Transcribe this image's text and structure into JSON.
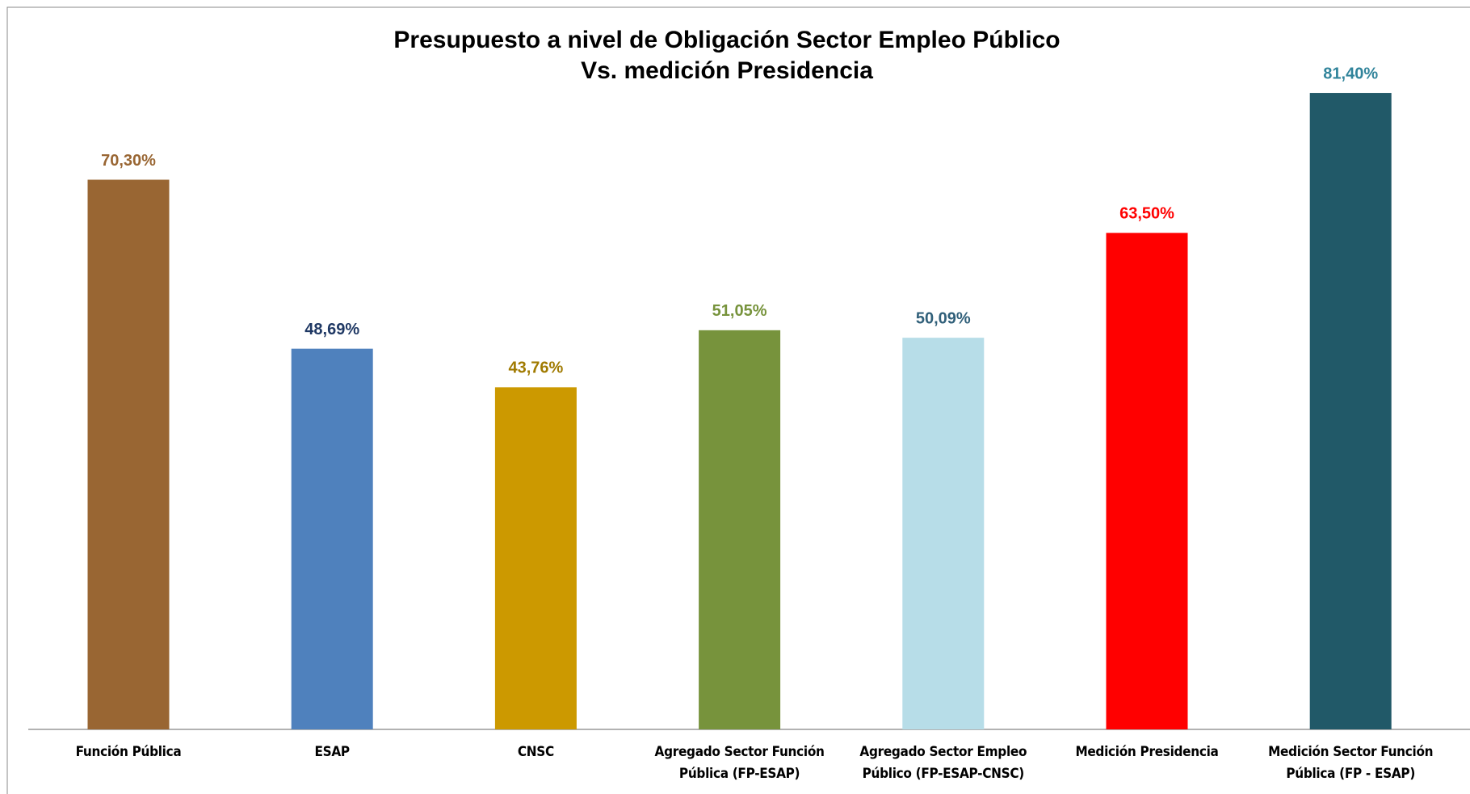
{
  "chart_data": {
    "type": "bar",
    "title": "Presupuesto a nivel de Obligación Sector Empleo Público",
    "subtitle": "Vs. medición Presidencia",
    "categories": [
      "Función Pública",
      "ESAP",
      "CNSC",
      "Agregado Sector Función Pública (FP-ESAP)",
      "Agregado Sector Empleo Público (FP-ESAP-CNSC)",
      "Medición Presidencia",
      "Medición Sector Función Pública (FP - ESAP)"
    ],
    "values": [
      70.3,
      48.69,
      43.76,
      51.05,
      50.09,
      63.5,
      81.4
    ],
    "value_labels": [
      "70,30%",
      "48,69%",
      "43,76%",
      "51,05%",
      "50,09%",
      "63,50%",
      "81,40%"
    ],
    "colors": [
      "#996633",
      "#4f81bd",
      "#cc9900",
      "#77933c",
      "#b7dde8",
      "#ff0000",
      "#215968"
    ],
    "label_colors": [
      "#996633",
      "#1f3864",
      "#a07a00",
      "#77933c",
      "#31607a",
      "#ff0000",
      "#31849b"
    ]
  }
}
